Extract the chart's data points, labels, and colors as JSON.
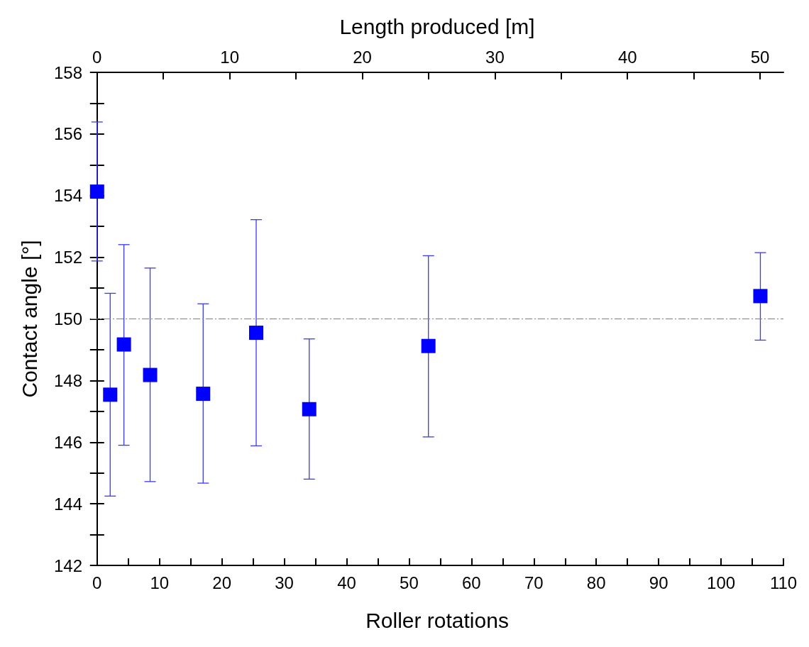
{
  "chart_data": {
    "type": "scatter",
    "xlabel": "Roller rotations",
    "ylabel": "Contact angle [°]",
    "x2label": "Length produced [m]",
    "x": [
      0,
      2.1,
      4.3,
      8.5,
      17,
      25.5,
      34,
      53.1,
      106.3
    ],
    "series": [
      {
        "color": "#0000ff",
        "values": [
          154.13,
          147.54,
          149.17,
          148.18,
          147.57,
          149.55,
          147.07,
          149.12,
          150.74
        ],
        "errors": [
          [
            151.88,
            156.39
          ],
          [
            144.25,
            150.83
          ],
          [
            145.9,
            152.41
          ],
          [
            144.72,
            151.65
          ],
          [
            144.67,
            150.49
          ],
          [
            145.88,
            153.22
          ],
          [
            144.8,
            149.35
          ],
          [
            146.17,
            152.05
          ],
          [
            149.31,
            152.15
          ]
        ]
      }
    ],
    "xlim": [
      -1,
      110
    ],
    "xticks": [
      0,
      10,
      20,
      30,
      40,
      50,
      60,
      70,
      80,
      90,
      100,
      110
    ],
    "x2lim": [
      -0.47,
      51.76
    ],
    "x2ticks": [
      0,
      10,
      20,
      30,
      40,
      50
    ],
    "ylim": [
      142,
      158
    ],
    "yticks": [
      142,
      144,
      146,
      148,
      150,
      152,
      154,
      156,
      158
    ],
    "ref_lines": [
      {
        "axis": "y",
        "value": 150,
        "color": "#808080",
        "line_style": "dashdot"
      }
    ],
    "marker": "square"
  }
}
